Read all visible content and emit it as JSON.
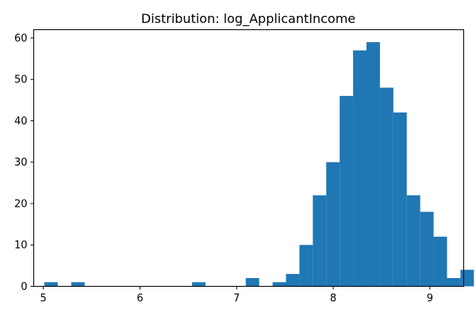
{
  "chart_data": {
    "type": "bar",
    "title": "Distribution: log_ApplicantIncome",
    "xlabel": "",
    "ylabel": "",
    "xlim": [
      4.9,
      9.35
    ],
    "ylim": [
      0,
      62
    ],
    "xticks": [
      5,
      6,
      7,
      8,
      9
    ],
    "yticks": [
      0,
      10,
      20,
      30,
      40,
      50,
      60
    ],
    "grid": false,
    "bar_color": "#1f77b4",
    "bins": {
      "start": 5.0106,
      "width": 0.1389,
      "counts": [
        1,
        0,
        1,
        0,
        0,
        0,
        0,
        0,
        0,
        0,
        0,
        1,
        0,
        0,
        0,
        2,
        0,
        1,
        3,
        10,
        22,
        30,
        46,
        57,
        59,
        48,
        42,
        22,
        18,
        12,
        2,
        4
      ]
    }
  }
}
